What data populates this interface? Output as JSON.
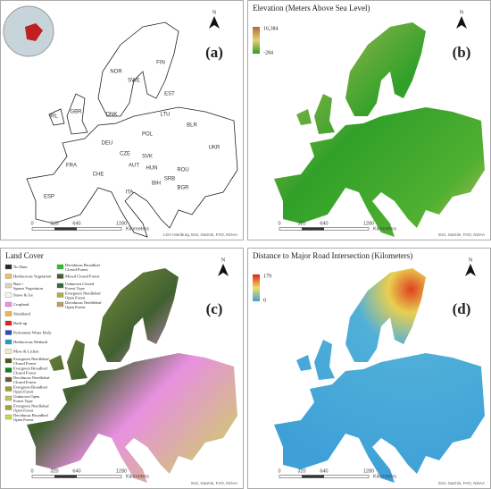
{
  "panels": [
    {
      "tag": "(a)",
      "north": "N",
      "countries": [
        "FIN",
        "NOR",
        "SWE",
        "EST",
        "LTU",
        "IRL",
        "GBR",
        "DNK",
        "BLR",
        "POL",
        "DEU",
        "UKR",
        "FRA",
        "CZE",
        "SVK",
        "AUT",
        "HUN",
        "ROU",
        "CHE",
        "ITA",
        "BIH",
        "SRB",
        "BGR",
        "ESP"
      ],
      "scale": [
        "0",
        "320",
        "640",
        "1280",
        "Kilometers"
      ],
      "credit": "LGV Hamburg, Esri, Garmin, FAO, NOAA"
    },
    {
      "tag": "(b)",
      "north": "N",
      "title": "Elevation (Meters Above Sea Level)",
      "legend_max": "16,384",
      "legend_min": "-284",
      "scale": [
        "0",
        "320",
        "640",
        "1280",
        "Kilometers"
      ],
      "credit": "Esri, Garmin, FAO, NOAA"
    },
    {
      "tag": "(c)",
      "north": "N",
      "title": "Land Cover",
      "legend": [
        {
          "label": "No Data",
          "color": "#2a2a2a"
        },
        {
          "label": "Herbaceous Vegetation",
          "color": "#f0c060"
        },
        {
          "label": "Bare / Sparse Vegetation",
          "color": "#d8d8c0"
        },
        {
          "label": "Snow & Ice",
          "color": "#f4f4f4"
        },
        {
          "label": "Cropland",
          "color": "#e890e0"
        },
        {
          "label": "Shrubland",
          "color": "#f8b048"
        },
        {
          "label": "Built-up",
          "color": "#e02020"
        },
        {
          "label": "Permanent Water Body",
          "color": "#2050c8"
        },
        {
          "label": "Herbaceous Wetland",
          "color": "#20a0c0"
        },
        {
          "label": "Moss & Lichen",
          "color": "#f8e8c0"
        },
        {
          "label": "Evergreen Needleleaf Closed Forest",
          "color": "#4a5a20"
        },
        {
          "label": "Evergreen Broadleaf Closed Forest",
          "color": "#108020"
        },
        {
          "label": "Deciduous Needleleaf Closed Forest",
          "color": "#705830"
        },
        {
          "label": "Evergreen Broadleaf Open Forest",
          "color": "#90a030"
        },
        {
          "label": "Unknown Open Forest Type",
          "color": "#c0c060"
        },
        {
          "label": "Evergreen Needleleaf Open Forest",
          "color": "#a0a040"
        },
        {
          "label": "Deciduous Broadleaf Open Forest",
          "color": "#c8d850"
        },
        {
          "label": "Deciduous Broadleaf Closed Forest",
          "color": "#30c030"
        },
        {
          "label": "Mixed Closed Forest",
          "color": "#406030"
        },
        {
          "label": "Unknown Closed Forest Type",
          "color": "#386838"
        },
        {
          "label": "Evergreen Needleleaf Open Forest",
          "color": "#a8b048"
        },
        {
          "label": "Deciduous Needleleaf Open Forest",
          "color": "#b8a070"
        }
      ],
      "scale": [
        "0",
        "320",
        "640",
        "1280",
        "Kilometers"
      ],
      "credit": "Esri, Garmin, FAO, NOAA"
    },
    {
      "tag": "(d)",
      "north": "N",
      "title": "Distance to Major Road Intersection (Kilometers)",
      "legend_max": "179",
      "legend_min": "0",
      "scale": [
        "0",
        "320",
        "640",
        "1280",
        "Kilometers"
      ],
      "credit": "Esri, Garmin, FAO, NOAA"
    }
  ]
}
